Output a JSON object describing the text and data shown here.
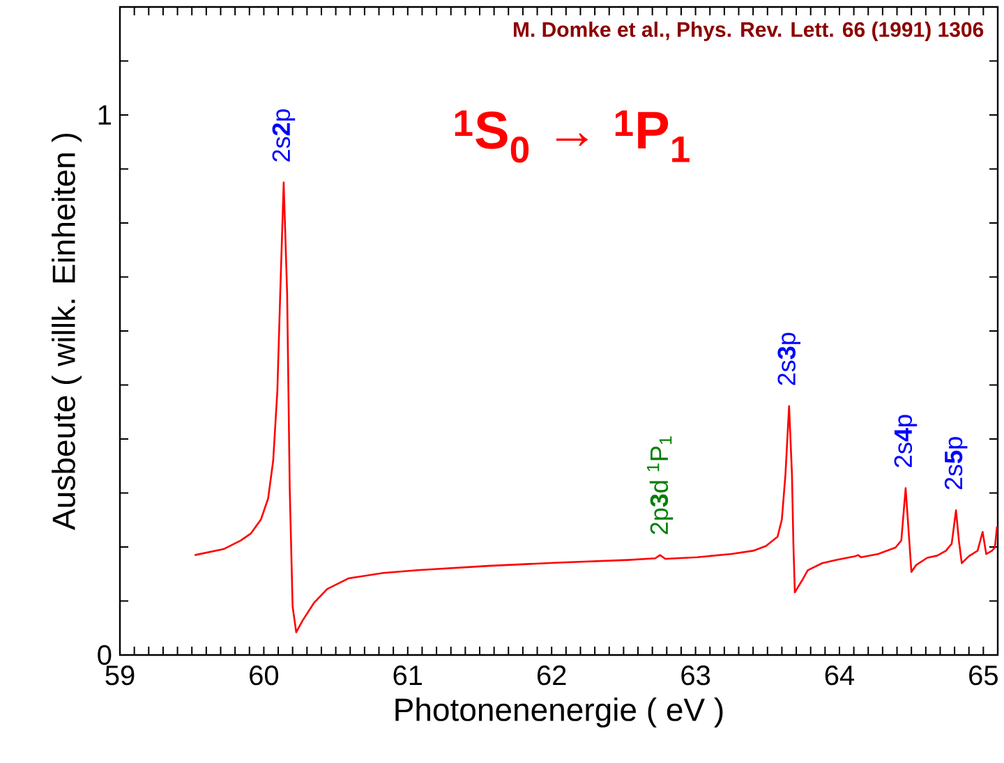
{
  "chart_data": {
    "type": "line",
    "xlabel": "Photonenenergie  ( eV )",
    "ylabel": "Ausbeute  ( willk. Einheiten )",
    "xlim": [
      59,
      65.1
    ],
    "ylim": [
      0,
      1.2
    ],
    "xticks": [
      59,
      {
        "value": 59.1,
        "label": null
      },
      {
        "value": 59.2,
        "label": null
      },
      {
        "value": 59.3,
        "label": null
      },
      {
        "value": 59.4,
        "label": null
      },
      {
        "value": 59.5,
        "label": null
      },
      {
        "value": 59.6,
        "label": null
      },
      {
        "value": 59.7,
        "label": null
      },
      {
        "value": 59.8,
        "label": null
      },
      {
        "value": 59.9,
        "label": null
      },
      60,
      {
        "value": 60.1,
        "label": null
      },
      {
        "value": 60.2,
        "label": null
      },
      {
        "value": 60.3,
        "label": null
      },
      {
        "value": 60.4,
        "label": null
      },
      {
        "value": 60.5,
        "label": null
      },
      {
        "value": 60.6,
        "label": null
      },
      {
        "value": 60.7,
        "label": null
      },
      {
        "value": 60.8,
        "label": null
      },
      {
        "value": 60.9,
        "label": null
      },
      61,
      {
        "value": 61.1,
        "label": null
      },
      {
        "value": 61.2,
        "label": null
      },
      {
        "value": 61.3,
        "label": null
      },
      {
        "value": 61.4,
        "label": null
      },
      {
        "value": 61.5,
        "label": null
      },
      {
        "value": 61.6,
        "label": null
      },
      {
        "value": 61.7,
        "label": null
      },
      {
        "value": 61.8,
        "label": null
      },
      {
        "value": 61.9,
        "label": null
      },
      62,
      {
        "value": 62.1,
        "label": null
      },
      {
        "value": 62.2,
        "label": null
      },
      {
        "value": 62.3,
        "label": null
      },
      {
        "value": 62.4,
        "label": null
      },
      {
        "value": 62.5,
        "label": null
      },
      {
        "value": 62.6,
        "label": null
      },
      {
        "value": 62.7,
        "label": null
      },
      {
        "value": 62.8,
        "label": null
      },
      {
        "value": 62.9,
        "label": null
      },
      63,
      {
        "value": 63.1,
        "label": null
      },
      {
        "value": 63.2,
        "label": null
      },
      {
        "value": 63.3,
        "label": null
      },
      {
        "value": 63.4,
        "label": null
      },
      {
        "value": 63.5,
        "label": null
      },
      {
        "value": 63.6,
        "label": null
      },
      {
        "value": 63.7,
        "label": null
      },
      {
        "value": 63.8,
        "label": null
      },
      {
        "value": 63.9,
        "label": null
      },
      64,
      {
        "value": 64.1,
        "label": null
      },
      {
        "value": 64.2,
        "label": null
      },
      {
        "value": 64.3,
        "label": null
      },
      {
        "value": 64.4,
        "label": null
      },
      {
        "value": 64.5,
        "label": null
      },
      {
        "value": 64.6,
        "label": null
      },
      {
        "value": 64.7,
        "label": null
      },
      {
        "value": 64.8,
        "label": null
      },
      {
        "value": 64.9,
        "label": null
      },
      65,
      {
        "value": 65.1,
        "label": null
      }
    ],
    "yticks": [
      0,
      {
        "value": 0.1,
        "label": null
      },
      {
        "value": 0.2,
        "label": null
      },
      {
        "value": 0.3,
        "label": null
      },
      {
        "value": 0.4,
        "label": null
      },
      {
        "value": 0.5,
        "label": null
      },
      {
        "value": 0.6,
        "label": null
      },
      {
        "value": 0.7,
        "label": null
      },
      {
        "value": 0.8,
        "label": null
      },
      {
        "value": 0.9,
        "label": null
      },
      1,
      {
        "value": 1.1,
        "label": null
      }
    ],
    "series": [
      {
        "color": "#ff0000",
        "x": [
          59.52,
          59.72,
          59.84,
          59.91,
          59.98,
          60.03,
          60.065,
          60.094,
          60.114,
          60.138,
          60.162,
          60.18,
          60.2,
          60.225,
          60.27,
          60.35,
          60.44,
          60.59,
          60.83,
          61.07,
          61.56,
          62.04,
          62.53,
          62.72,
          62.753,
          62.79,
          63.01,
          63.25,
          63.4,
          63.49,
          63.57,
          63.6,
          63.625,
          63.65,
          63.67,
          63.68,
          63.69,
          63.74,
          63.78,
          63.88,
          63.98,
          64.11,
          64.13,
          64.15,
          64.27,
          64.39,
          64.43,
          64.46,
          64.48,
          64.5,
          64.535,
          64.61,
          64.68,
          64.74,
          64.78,
          64.81,
          64.83,
          64.85,
          64.9,
          64.96,
          64.995,
          65.02,
          65.06,
          65.08,
          65.095
        ],
        "values": [
          0.185,
          0.196,
          0.212,
          0.225,
          0.251,
          0.29,
          0.36,
          0.489,
          0.669,
          0.875,
          0.669,
          0.309,
          0.09,
          0.042,
          0.064,
          0.097,
          0.122,
          0.142,
          0.152,
          0.157,
          0.165,
          0.171,
          0.176,
          0.179,
          0.185,
          0.178,
          0.181,
          0.187,
          0.193,
          0.202,
          0.219,
          0.251,
          0.335,
          0.461,
          0.335,
          0.206,
          0.116,
          0.138,
          0.157,
          0.17,
          0.176,
          0.183,
          0.185,
          0.181,
          0.187,
          0.199,
          0.212,
          0.309,
          0.232,
          0.154,
          0.167,
          0.18,
          0.184,
          0.193,
          0.206,
          0.268,
          0.212,
          0.17,
          0.183,
          0.193,
          0.228,
          0.187,
          0.193,
          0.199,
          0.238
        ]
      }
    ],
    "marker": "none",
    "line_style": "solid",
    "annotations": [
      "M. Domke et al., Phys. Rev. Lett. 66 (1991) 1306",
      "$^{1}$S$_{0}$ → $^{1}$P$_{1}$",
      {
        "text": "2s**2**p",
        "x": 60.138,
        "y": 0.875
      },
      {
        "text": "2p**3**d $^{1}$P$_{1}$",
        "x": 62.753,
        "y": 0.185
      },
      {
        "text": "2s**3**p",
        "x": 63.65,
        "y": 0.461
      },
      {
        "text": "2s**4**p",
        "x": 64.46,
        "y": 0.309
      },
      {
        "text": "2s**5**p",
        "x": 64.81,
        "y": 0.268
      }
    ]
  }
}
